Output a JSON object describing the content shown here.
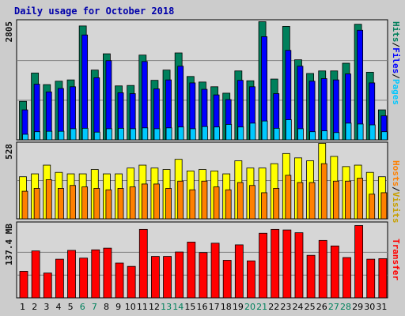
{
  "title": "Daily usage for October 2018",
  "colors": {
    "background": "#cccccc",
    "panel": "#d6d6d6",
    "title": "#0000aa",
    "hits": "#00805c",
    "files": "#0000ff",
    "pages": "#00c8ff",
    "visits": "#ffff00",
    "hosts": "#ff8000",
    "transfer": "#ff0000",
    "weekend_label": "#00805c",
    "weekday_label": "#000000"
  },
  "chart_data": [
    {
      "type": "bar",
      "title": "",
      "ylabel": "2805",
      "ymax": 2805,
      "series": [
        {
          "name": "Hits",
          "values": [
            900,
            1560,
            1290,
            1370,
            1400,
            2660,
            1630,
            2010,
            1260,
            1270,
            1980,
            1390,
            1630,
            2030,
            1480,
            1350,
            1240,
            1090,
            1610,
            1380,
            2760,
            1420,
            2650,
            1870,
            1550,
            1610,
            1610,
            1790,
            2700,
            1580,
            700
          ]
        },
        {
          "name": "Files",
          "values": [
            700,
            1300,
            1120,
            1200,
            1240,
            2450,
            1450,
            1850,
            1100,
            1080,
            1830,
            1190,
            1400,
            1720,
            1330,
            1180,
            1050,
            940,
            1390,
            1240,
            2410,
            1080,
            2090,
            1720,
            1370,
            1430,
            1400,
            1540,
            2560,
            1330,
            560
          ]
        },
        {
          "name": "Pages",
          "values": [
            130,
            190,
            200,
            200,
            260,
            270,
            180,
            260,
            270,
            260,
            280,
            260,
            280,
            300,
            260,
            310,
            300,
            360,
            300,
            390,
            440,
            270,
            470,
            260,
            190,
            210,
            170,
            390,
            370,
            350,
            190
          ]
        }
      ]
    },
    {
      "type": "bar",
      "title": "",
      "ylabel": "528",
      "ymax": 528,
      "series": [
        {
          "name": "Visits",
          "values": [
            290,
            310,
            370,
            320,
            310,
            310,
            340,
            310,
            310,
            350,
            370,
            350,
            340,
            410,
            330,
            340,
            330,
            310,
            400,
            350,
            350,
            380,
            450,
            420,
            400,
            520,
            430,
            360,
            370,
            320,
            290
          ]
        },
        {
          "name": "Hosts",
          "values": [
            190,
            210,
            270,
            210,
            230,
            220,
            210,
            200,
            210,
            220,
            240,
            240,
            210,
            260,
            200,
            260,
            220,
            200,
            250,
            230,
            180,
            210,
            300,
            250,
            250,
            380,
            260,
            260,
            280,
            170,
            180
          ]
        }
      ]
    },
    {
      "type": "bar",
      "title": "",
      "ylabel": "137.4 MB",
      "ymax": 137.4,
      "series": [
        {
          "name": "Transfer",
          "values": [
            48,
            85,
            45,
            70,
            86,
            72,
            87,
            90,
            63,
            57,
            124,
            75,
            75,
            83,
            101,
            82,
            99,
            68,
            96,
            67,
            117,
            124,
            123,
            118,
            77,
            104,
            94,
            73,
            131,
            70,
            71
          ]
        }
      ]
    }
  ],
  "days": [
    "1",
    "2",
    "3",
    "4",
    "5",
    "6",
    "7",
    "8",
    "9",
    "10",
    "11",
    "12",
    "13",
    "14",
    "15",
    "16",
    "17",
    "18",
    "19",
    "20",
    "21",
    "22",
    "23",
    "24",
    "25",
    "26",
    "27",
    "28",
    "29",
    "30",
    "31"
  ],
  "weekend_days": [
    "6",
    "7",
    "13",
    "14",
    "20",
    "21",
    "27",
    "28"
  ],
  "labels": {
    "hits": "Hits",
    "files": "Files",
    "pages": "Pages",
    "sep": "/",
    "hosts": "Hosts",
    "visits": "Visits",
    "transfer": "Transfer"
  }
}
